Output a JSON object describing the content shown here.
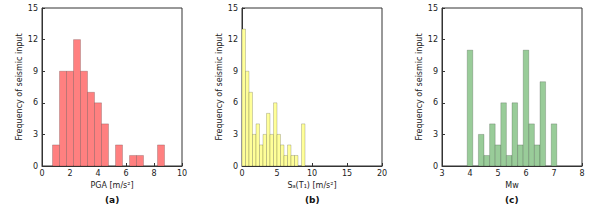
{
  "chart_data": [
    {
      "type": "histogram",
      "caption": "(a)",
      "xlabel": "PGA [m/s²]",
      "ylabel": "Frequency of seismic input",
      "bins": [
        0.75,
        1.25,
        1.75,
        2.25,
        2.75,
        3.25,
        3.75,
        4.25,
        4.75,
        5.25,
        5.75,
        6.25,
        6.75,
        7.25,
        7.75,
        8.25,
        8.75
      ],
      "values": [
        2,
        9,
        9,
        12,
        9,
        7,
        6,
        4,
        0,
        2,
        0,
        1,
        1,
        0,
        0,
        2
      ],
      "color": "#ff8080",
      "xlim": [
        0,
        10
      ],
      "xticks": [
        0,
        2,
        4,
        6,
        8,
        10
      ],
      "ylim": [
        0,
        15
      ],
      "yticks": [
        0,
        3,
        6,
        9,
        12,
        15
      ],
      "grid": false
    },
    {
      "type": "histogram",
      "caption": "(b)",
      "xlabel": "Sₐ(T₁) [m/s²]",
      "ylabel": "Frequency of seismic input",
      "bins": [
        0,
        0.5,
        1,
        1.5,
        2,
        2.5,
        3,
        3.5,
        4,
        4.5,
        5,
        5.5,
        6,
        6.5,
        7,
        7.5,
        8,
        8.5,
        9
      ],
      "values": [
        13,
        9,
        7,
        3,
        4,
        2,
        3,
        5,
        3,
        6,
        3,
        2,
        1,
        2,
        1,
        1,
        0,
        4
      ],
      "color": "#ffff99",
      "xlim": [
        0,
        20
      ],
      "xticks": [
        0,
        5,
        10,
        15,
        20
      ],
      "ylim": [
        0,
        15
      ],
      "yticks": [
        0,
        3,
        6,
        9,
        12,
        15
      ],
      "grid": false
    },
    {
      "type": "histogram",
      "caption": "(c)",
      "xlabel": "Mw",
      "ylabel": "Frequency of seismic input",
      "bins": [
        3.9,
        4.1,
        4.3,
        4.5,
        4.7,
        4.9,
        5.1,
        5.3,
        5.5,
        5.7,
        5.9,
        6.1,
        6.3,
        6.5,
        6.7,
        6.9,
        7.1
      ],
      "values": [
        11,
        0,
        3,
        1,
        4,
        2,
        6,
        1,
        6,
        2,
        11,
        4,
        2,
        8,
        0,
        4
      ],
      "color": "#99cc99",
      "xlim": [
        3,
        8
      ],
      "xticks": [
        3,
        4,
        5,
        6,
        7,
        8
      ],
      "ylim": [
        0,
        15
      ],
      "yticks": [
        0,
        3,
        6,
        9,
        12,
        15
      ],
      "grid": false
    }
  ]
}
